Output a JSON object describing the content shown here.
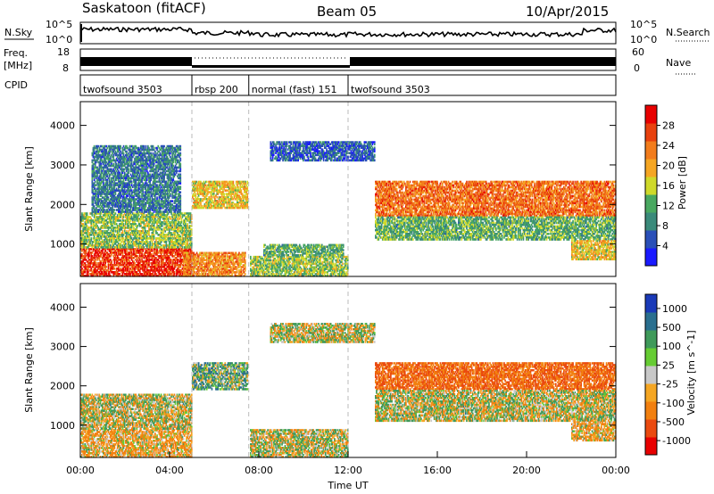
{
  "header": {
    "station": "Saskatoon (fitACF)",
    "beam": "Beam 05",
    "date": "10/Apr/2015"
  },
  "noise_panel": {
    "left_label": "N.Sky",
    "left_ticks": [
      "10^5",
      "10^0"
    ],
    "right_label": "N.Search",
    "right_ticks": [
      "10^5",
      "10^0"
    ]
  },
  "freq_panel": {
    "left_label_line1": "Freq.",
    "left_label_line2": "[MHz]",
    "left_ticks": [
      "18",
      "8"
    ],
    "right_label": "Nave",
    "right_ticks": [
      "60",
      "0"
    ]
  },
  "cpid": {
    "label": "CPID",
    "segments": [
      {
        "name": "twofsound 3503",
        "start_hour": 0.0,
        "end_hour": 5.0
      },
      {
        "name": "rbsp 200",
        "start_hour": 5.0,
        "end_hour": 7.55
      },
      {
        "name": "normal (fast) 151",
        "start_hour": 7.55,
        "end_hour": 12.0
      },
      {
        "name": "twofsound 3503",
        "start_hour": 12.0,
        "end_hour": 24.0
      }
    ]
  },
  "chart_data": [
    {
      "type": "heatmap",
      "name": "power",
      "xlabel": "",
      "ylabel": "Slant Range [km]",
      "xlim": [
        0,
        24
      ],
      "ylim": [
        180,
        4600
      ],
      "y_ticks": [
        1000,
        2000,
        3000,
        4000
      ],
      "colorbar": {
        "label": "Power [dB]",
        "range": [
          0,
          32
        ],
        "ticks": [
          "4",
          "8",
          "12",
          "16",
          "20",
          "24",
          "28"
        ],
        "colors": [
          "#1a1aff",
          "#2a4fb8",
          "#3a8a7a",
          "#49a860",
          "#cfd92a",
          "#f5a623",
          "#f27c1c",
          "#e8410e",
          "#e80000"
        ]
      },
      "regions": [
        {
          "t0": 0.0,
          "t1": 5.0,
          "r0": 180,
          "r1": 900,
          "level": 28
        },
        {
          "t0": 0.0,
          "t1": 5.0,
          "r0": 900,
          "r1": 1800,
          "level": 14
        },
        {
          "t0": 0.5,
          "t1": 4.5,
          "r0": 1800,
          "r1": 3500,
          "level": 8
        },
        {
          "t0": 4.6,
          "t1": 7.4,
          "r0": 180,
          "r1": 800,
          "level": 22
        },
        {
          "t0": 5.0,
          "t1": 7.5,
          "r0": 1900,
          "r1": 2600,
          "level": 18
        },
        {
          "t0": 7.6,
          "t1": 12.0,
          "r0": 180,
          "r1": 700,
          "level": 14
        },
        {
          "t0": 8.2,
          "t1": 11.8,
          "r0": 700,
          "r1": 1000,
          "level": 12
        },
        {
          "t0": 8.5,
          "t1": 13.2,
          "r0": 3100,
          "r1": 3600,
          "level": 6
        },
        {
          "t0": 13.2,
          "t1": 24.0,
          "r0": 1700,
          "r1": 2600,
          "level": 24
        },
        {
          "t0": 13.2,
          "t1": 24.0,
          "r0": 1100,
          "r1": 1700,
          "level": 12
        },
        {
          "t0": 22.0,
          "t1": 24.0,
          "r0": 600,
          "r1": 1100,
          "level": 18
        }
      ]
    },
    {
      "type": "heatmap",
      "name": "velocity",
      "xlabel": "Time UT",
      "ylabel": "Slant Range [km]",
      "xlim": [
        0,
        24
      ],
      "ylim": [
        180,
        4600
      ],
      "x_ticks": [
        "00:00",
        "04:00",
        "08:00",
        "12:00",
        "16:00",
        "20:00",
        "00:00"
      ],
      "y_ticks": [
        1000,
        2000,
        3000,
        4000
      ],
      "colorbar": {
        "label": "Velocity [m s^-1]",
        "ticks": [
          "1000",
          "500",
          "100",
          "25",
          "-25",
          "-100",
          "-500",
          "-1000"
        ],
        "colors": [
          "#1a3ab8",
          "#2a6f8f",
          "#3f9a5a",
          "#66cc33",
          "#c8c8c8",
          "#f5a623",
          "#f28010",
          "#ea4a10",
          "#e80000"
        ]
      },
      "regions": [
        {
          "t0": 0.0,
          "t1": 5.0,
          "r0": 180,
          "r1": 900,
          "level": -100
        },
        {
          "t0": 0.0,
          "t1": 5.0,
          "r0": 900,
          "r1": 1800,
          "level": 0
        },
        {
          "t0": 5.0,
          "t1": 7.5,
          "r0": 1900,
          "r1": 2600,
          "level": 100
        },
        {
          "t0": 7.6,
          "t1": 12.0,
          "r0": 180,
          "r1": 900,
          "level": 0
        },
        {
          "t0": 8.5,
          "t1": 13.2,
          "r0": 3100,
          "r1": 3600,
          "level": 0
        },
        {
          "t0": 13.2,
          "t1": 24.0,
          "r0": 1900,
          "r1": 2600,
          "level": -300
        },
        {
          "t0": 13.2,
          "t1": 24.0,
          "r0": 1100,
          "r1": 1900,
          "level": 0
        },
        {
          "t0": 22.0,
          "t1": 24.0,
          "r0": 600,
          "r1": 1100,
          "level": -100
        }
      ]
    }
  ]
}
